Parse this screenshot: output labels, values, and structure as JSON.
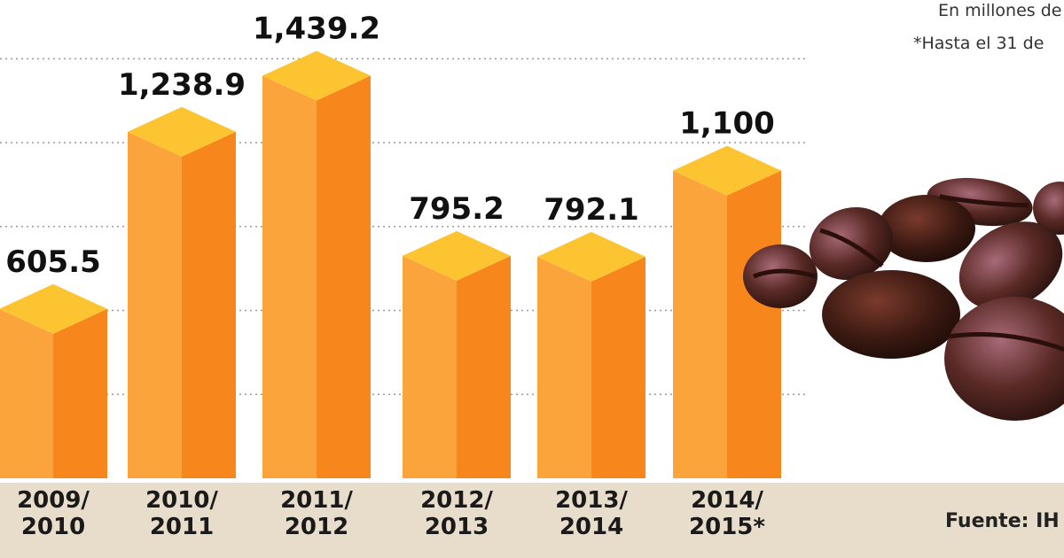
{
  "chart_data": {
    "type": "bar",
    "notes": [
      "En millones de",
      "*Hasta el 31 de"
    ],
    "source": "Fuente: IH",
    "categories": [
      "2009/\n2010",
      "2010/\n2011",
      "2011/\n2012",
      "2012/\n2013",
      "2013/\n2014",
      "2014/\n2015*"
    ],
    "values": [
      605.5,
      1238.9,
      1439.2,
      795.2,
      792.1,
      1100
    ],
    "value_labels": [
      "605.5",
      "1,238.9",
      "1,439.2",
      "795.2",
      "792.1",
      "1,100"
    ],
    "colors": {
      "left": "#fba43c",
      "right": "#f7861d",
      "top": "#fdc431"
    },
    "ylim": [
      0,
      1710
    ],
    "yticks": [
      300,
      600,
      900,
      1200,
      1500
    ],
    "grid": true
  }
}
